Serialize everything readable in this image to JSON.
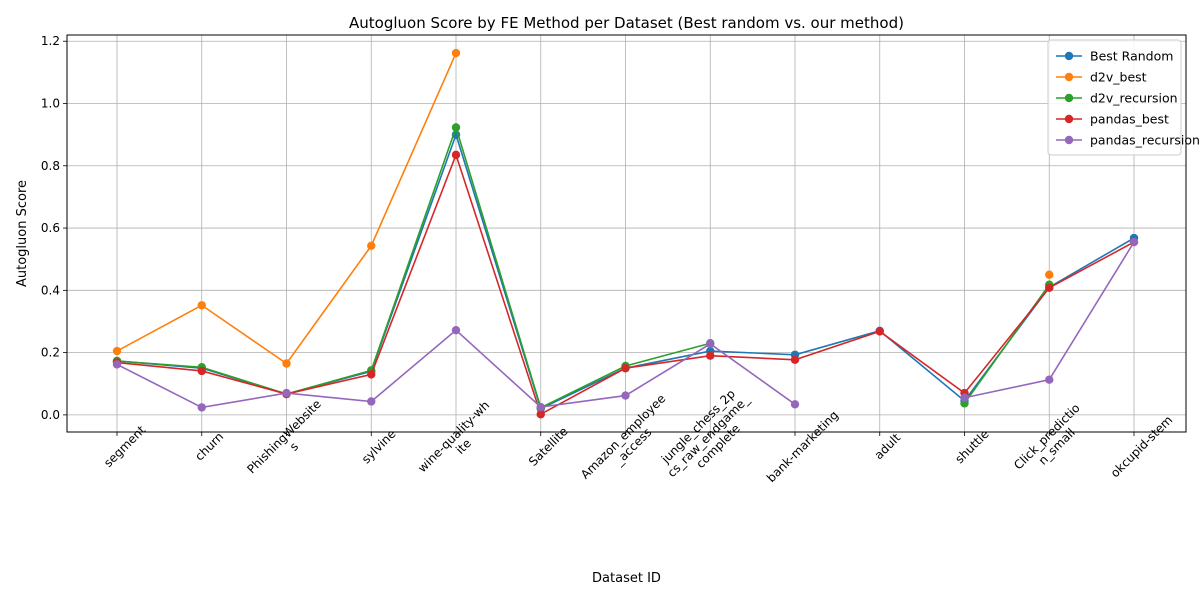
{
  "chart_data": {
    "type": "line",
    "title": "Autogluon Score by FE Method per Dataset (Best random vs. our method)",
    "xlabel": "Dataset ID",
    "ylabel": "Autogluon Score",
    "ylim": [
      -0.055,
      1.22
    ],
    "yticks": [
      0.0,
      0.2,
      0.4,
      0.6,
      0.8,
      1.0,
      1.2
    ],
    "ytick_labels": [
      "0.0",
      "0.2",
      "0.4",
      "0.6",
      "0.8",
      "1.0",
      "1.2"
    ],
    "grid": true,
    "legend_position": "top-right",
    "categories": [
      [
        "segment"
      ],
      [
        "churn"
      ],
      [
        "PhishingWebsite",
        "s"
      ],
      [
        "sylvine"
      ],
      [
        "wine-quality-wh",
        "ite"
      ],
      [
        "Satellite"
      ],
      [
        "Amazon_employee",
        "_access"
      ],
      [
        "jungle_chess_2p",
        "cs_raw_endgame_",
        "complete"
      ],
      [
        "bank-marketing"
      ],
      [
        "adult"
      ],
      [
        "shuttle"
      ],
      [
        "Click_predictio",
        "n_small"
      ],
      [
        "okcupid-stem"
      ]
    ],
    "series": [
      {
        "name": "Best Random",
        "color": "#1f77b4",
        "values": [
          0.173,
          0.15,
          0.067,
          0.14,
          0.9,
          0.02,
          0.15,
          0.205,
          0.193,
          0.27,
          0.045,
          0.41,
          0.568
        ]
      },
      {
        "name": "d2v_best",
        "color": "#ff7f0e",
        "values": [
          0.205,
          0.352,
          0.165,
          0.543,
          1.162,
          null,
          null,
          null,
          null,
          null,
          null,
          0.45,
          null
        ]
      },
      {
        "name": "d2v_recursion",
        "color": "#2ca02c",
        "values": [
          0.173,
          0.153,
          0.067,
          0.143,
          0.923,
          0.023,
          0.157,
          0.23,
          null,
          null,
          0.037,
          0.418,
          null
        ]
      },
      {
        "name": "pandas_best",
        "color": "#d62728",
        "values": [
          0.168,
          0.141,
          0.067,
          0.13,
          0.835,
          0.002,
          0.15,
          0.19,
          0.177,
          0.268,
          0.07,
          0.408,
          0.555
        ]
      },
      {
        "name": "pandas_recursion",
        "color": "#9467bd",
        "values": [
          0.162,
          0.024,
          0.07,
          0.043,
          0.272,
          0.025,
          0.062,
          0.228,
          0.034,
          null,
          0.055,
          0.113,
          0.555
        ]
      }
    ]
  }
}
